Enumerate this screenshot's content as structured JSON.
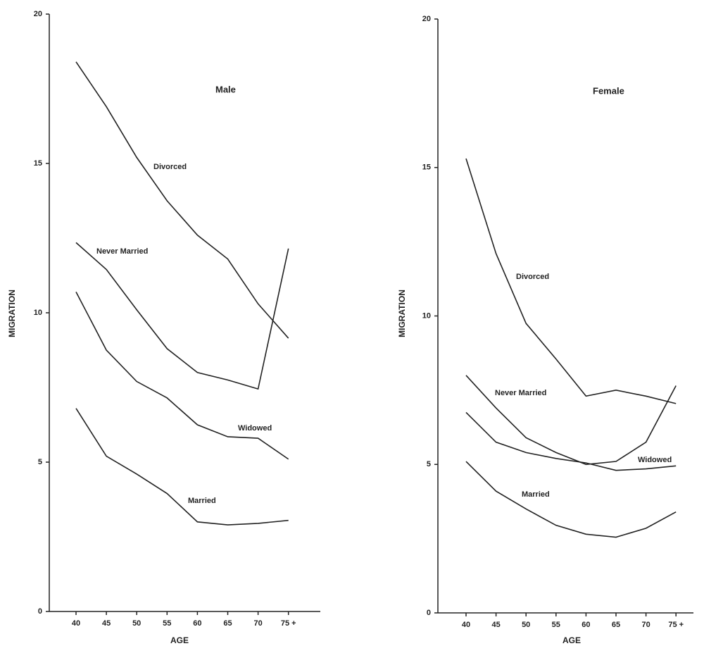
{
  "chart_data": [
    {
      "type": "line",
      "title": "Male",
      "x_label": "AGE",
      "y_label": "MIGRATION",
      "categories": [
        "40",
        "45",
        "50",
        "55",
        "60",
        "65",
        "70",
        "75 +"
      ],
      "ylim": [
        0,
        20
      ],
      "yticks": [
        0,
        5,
        10,
        15,
        20
      ],
      "series": [
        {
          "name": "Divorced",
          "color": "#222222",
          "values": [
            18.4,
            16.9,
            15.2,
            13.75,
            12.6,
            11.8,
            10.3,
            9.15
          ]
        },
        {
          "name": "Never Married",
          "color": "#222222",
          "values": [
            12.35,
            11.45,
            10.1,
            8.8,
            8.0,
            7.75,
            7.45,
            12.15
          ]
        },
        {
          "name": "Widowed",
          "color": "#222222",
          "values": [
            10.7,
            8.75,
            7.7,
            7.15,
            6.25,
            5.85,
            5.8,
            5.1
          ]
        },
        {
          "name": "Married",
          "color": "#222222",
          "values": [
            6.8,
            5.2,
            4.6,
            3.95,
            3.0,
            2.9,
            2.95,
            3.05
          ]
        }
      ]
    },
    {
      "type": "line",
      "title": "Female",
      "x_label": "AGE",
      "y_label": "MIGRATION",
      "categories": [
        "40",
        "45",
        "50",
        "55",
        "60",
        "65",
        "70",
        "75 +"
      ],
      "ylim": [
        0,
        20
      ],
      "yticks": [
        0,
        5,
        10,
        15,
        20
      ],
      "series": [
        {
          "name": "Divorced",
          "color": "#222222",
          "values": [
            15.3,
            12.1,
            9.75,
            8.55,
            7.3,
            7.5,
            7.3,
            7.05
          ]
        },
        {
          "name": "Never Married",
          "color": "#222222",
          "values": [
            8.0,
            6.9,
            5.9,
            5.4,
            5.0,
            5.1,
            5.75,
            7.65
          ]
        },
        {
          "name": "Widowed",
          "color": "#222222",
          "values": [
            6.75,
            5.75,
            5.4,
            5.2,
            5.05,
            4.8,
            4.85,
            4.95
          ]
        },
        {
          "name": "Married",
          "color": "#222222",
          "values": [
            5.1,
            4.1,
            3.5,
            2.95,
            2.65,
            2.55,
            2.85,
            3.4
          ]
        }
      ]
    }
  ]
}
